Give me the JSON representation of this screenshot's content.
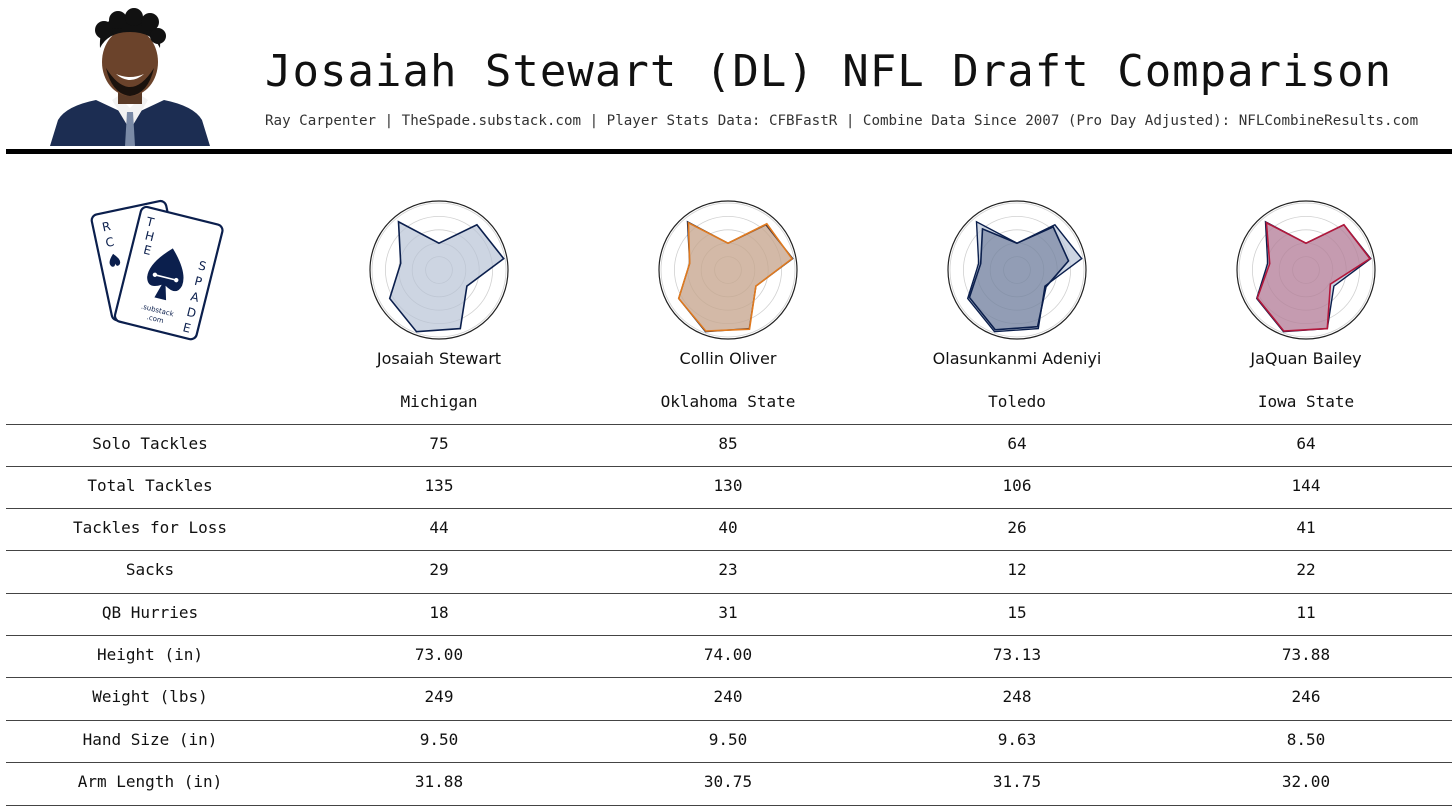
{
  "header": {
    "title": "Josaiah Stewart (DL) NFL Draft Comparison",
    "subtitle": "Ray Carpenter | TheSpade.substack.com | Player Stats Data: CFBFastR | Combine Data Since 2007 (Pro Day Adjusted): NFLCombineResults.com"
  },
  "logo": {
    "letters_left": [
      "R",
      "C",
      "T",
      "H",
      "E"
    ],
    "letters_right": [
      "S",
      "P",
      "A",
      "D",
      "E"
    ],
    "tagline": [
      ".substack",
      ".com"
    ]
  },
  "colors": {
    "Josaiah Stewart": "#0b1f4d",
    "Collin Oliver": "#e07a1f",
    "Olasunkanmi Adeniyi": "#0b1f4d",
    "JaQuan Bailey": "#b3173b",
    "baseline_fill": "#b8c3d6"
  },
  "players": [
    {
      "name": "Josaiah Stewart",
      "school": "Michigan"
    },
    {
      "name": "Collin Oliver",
      "school": "Oklahoma State"
    },
    {
      "name": "Olasunkanmi Adeniyi",
      "school": "Toledo"
    },
    {
      "name": "JaQuan Bailey",
      "school": "Iowa State"
    }
  ],
  "chart_data": [
    {
      "type": "table",
      "columns": [
        "Josaiah Stewart",
        "Collin Oliver",
        "Olasunkanmi Adeniyi",
        "JaQuan Bailey"
      ],
      "rows": [
        {
          "label": "Solo Tackles",
          "values": [
            "75",
            "85",
            "64",
            "64"
          ]
        },
        {
          "label": "Total Tackles",
          "values": [
            "135",
            "130",
            "106",
            "144"
          ]
        },
        {
          "label": "Tackles for Loss",
          "values": [
            "44",
            "40",
            "26",
            "41"
          ]
        },
        {
          "label": "Sacks",
          "values": [
            "29",
            "23",
            "12",
            "22"
          ]
        },
        {
          "label": "QB Hurries",
          "values": [
            "18",
            "31",
            "15",
            "11"
          ]
        },
        {
          "label": "Height (in)",
          "values": [
            "73.00",
            "74.00",
            "73.13",
            "73.88"
          ]
        },
        {
          "label": "Weight (lbs)",
          "values": [
            "249",
            "240",
            "248",
            "246"
          ]
        },
        {
          "label": "Hand Size (in)",
          "values": [
            "9.50",
            "9.50",
            "9.63",
            "8.50"
          ]
        },
        {
          "label": "Arm Length (in)",
          "values": [
            "31.88",
            "30.75",
            "31.75",
            "32.00"
          ]
        }
      ]
    },
    {
      "type": "radar",
      "grid_rings": 5,
      "scale": [
        0,
        1
      ],
      "series": [
        {
          "name": "Josaiah Stewart",
          "values": [
            0.4,
            0.88,
            0.98,
            0.48,
            0.93,
            0.98,
            0.85,
            0.58,
            0.94
          ]
        },
        {
          "name": "Collin Oliver",
          "values": [
            0.4,
            0.9,
            0.97,
            0.48,
            0.94,
            0.97,
            0.85,
            0.58,
            0.92
          ]
        },
        {
          "name": "Olasunkanmi Adeniyi",
          "values": [
            0.4,
            0.84,
            0.78,
            0.5,
            0.9,
            0.95,
            0.82,
            0.55,
            0.8
          ]
        },
        {
          "name": "JaQuan Bailey",
          "values": [
            0.4,
            0.88,
            0.97,
            0.42,
            0.93,
            0.97,
            0.84,
            0.55,
            0.92
          ]
        }
      ]
    }
  ]
}
